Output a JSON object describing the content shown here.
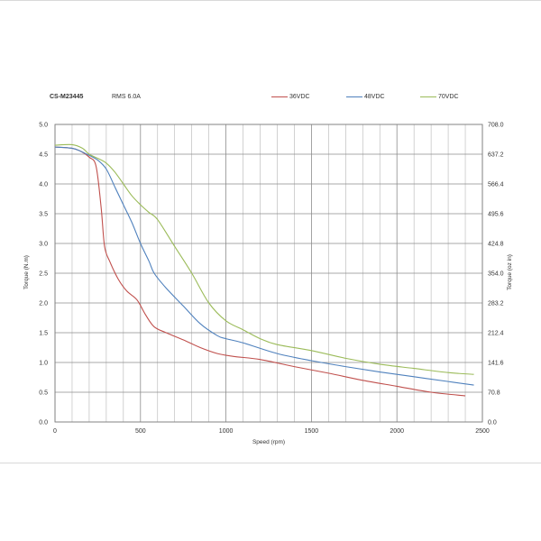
{
  "header": {
    "model": "CS-M23445",
    "rms": "RMS 6.0A"
  },
  "chart_data": {
    "type": "line",
    "title": "",
    "xlabel": "Speed (rpm)",
    "ylabel_left": "Torque (N.m)",
    "ylabel_right": "Torque (oz in)",
    "xlim": [
      0,
      2500
    ],
    "ylim_left": [
      0,
      5.0
    ],
    "ylim_right": [
      0,
      708.0
    ],
    "grid": true,
    "legend_position": "top-right",
    "x_ticks": [
      0,
      500,
      1000,
      1500,
      2000,
      2500
    ],
    "x_tick_labels": [
      "0",
      "500",
      "1000",
      "1500",
      "2000",
      "2500"
    ],
    "y_left_ticks": [
      0,
      0.5,
      1.0,
      1.5,
      2.0,
      2.5,
      3.0,
      3.5,
      4.0,
      4.5,
      5.0
    ],
    "y_left_tick_labels": [
      "0.0",
      "0.5",
      "1.0",
      "1.5",
      "2.0",
      "2.5",
      "3.0",
      "3.5",
      "4.0",
      "4.5",
      "5.0"
    ],
    "y_right_tick_labels": [
      "0.0",
      "70.8",
      "141.6",
      "212.4",
      "283.2",
      "354.0",
      "424.8",
      "495.6",
      "566.4",
      "637.2",
      "708.0"
    ],
    "series": [
      {
        "name": "36VDC",
        "color": "#c0504d",
        "x": [
          0,
          100,
          150,
          200,
          240,
          270,
          290,
          320,
          370,
          420,
          480,
          530,
          580,
          650,
          750,
          850,
          950,
          1050,
          1200,
          1400,
          1600,
          1800,
          2000,
          2200,
          2400
        ],
        "y": [
          4.62,
          4.6,
          4.55,
          4.45,
          4.3,
          3.6,
          2.95,
          2.7,
          2.4,
          2.2,
          2.05,
          1.8,
          1.6,
          1.5,
          1.38,
          1.25,
          1.15,
          1.1,
          1.05,
          0.93,
          0.82,
          0.7,
          0.6,
          0.5,
          0.44
        ]
      },
      {
        "name": "48VDC",
        "color": "#4f81bd",
        "x": [
          0,
          100,
          150,
          200,
          250,
          300,
          350,
          400,
          450,
          500,
          550,
          580,
          650,
          750,
          850,
          950,
          1000,
          1100,
          1300,
          1500,
          1700,
          1900,
          2100,
          2300,
          2450
        ],
        "y": [
          4.62,
          4.6,
          4.55,
          4.48,
          4.4,
          4.25,
          3.95,
          3.65,
          3.35,
          3.0,
          2.7,
          2.5,
          2.25,
          1.95,
          1.65,
          1.45,
          1.4,
          1.33,
          1.15,
          1.03,
          0.93,
          0.84,
          0.76,
          0.68,
          0.62
        ]
      },
      {
        "name": "70VDC",
        "color": "#9bbb59",
        "x": [
          0,
          100,
          160,
          200,
          250,
          300,
          350,
          400,
          450,
          500,
          550,
          600,
          700,
          800,
          900,
          1000,
          1100,
          1200,
          1300,
          1500,
          1700,
          1900,
          2100,
          2300,
          2450
        ],
        "y": [
          4.65,
          4.66,
          4.6,
          4.5,
          4.43,
          4.35,
          4.2,
          4.0,
          3.8,
          3.65,
          3.52,
          3.4,
          2.95,
          2.5,
          2.0,
          1.7,
          1.55,
          1.4,
          1.3,
          1.2,
          1.07,
          0.97,
          0.9,
          0.83,
          0.8
        ]
      }
    ]
  }
}
